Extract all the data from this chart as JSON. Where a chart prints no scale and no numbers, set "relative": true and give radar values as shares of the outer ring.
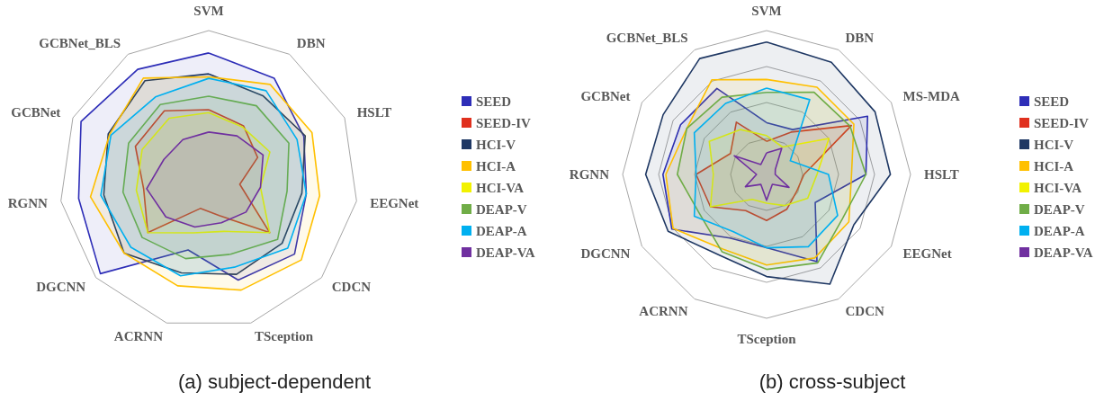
{
  "chart_data": [
    {
      "type": "radar",
      "title": "(a) subject-dependent",
      "relative": true,
      "grid": false,
      "legend": "right",
      "marker": "none",
      "categories": [
        "SVM",
        "DBN",
        "HSLT",
        "EEGNet",
        "CDCN",
        "TSception",
        "ACRNN",
        "DGCNN",
        "RGNN",
        "GCBNet",
        "GCBNet_BLS"
      ],
      "series": [
        {
          "name": "SEED",
          "color": "#2e2eb8",
          "values": [
            0.85,
            0.81,
            0.7,
            0.66,
            0.76,
            0.7,
            0.49,
            0.96,
            0.88,
            0.94,
            0.88
          ]
        },
        {
          "name": "SEED-IV",
          "color": "#e0301e",
          "values": [
            0.47,
            0.43,
            0.36,
            0.21,
            0.54,
            0.25,
            0.2,
            0.54,
            0.44,
            0.54,
            0.55
          ]
        },
        {
          "name": "HCI-V",
          "color": "#1f3864",
          "values": [
            0.71,
            0.67,
            0.71,
            0.63,
            0.65,
            0.66,
            0.65,
            0.75,
            0.71,
            0.74,
            0.79
          ]
        },
        {
          "name": "HCI-A",
          "color": "#ffc000",
          "values": [
            0.69,
            0.76,
            0.76,
            0.75,
            0.82,
            0.77,
            0.74,
            0.75,
            0.8,
            0.73,
            0.81
          ]
        },
        {
          "name": "HCI-VA",
          "color": "#f2f200",
          "values": [
            0.45,
            0.42,
            0.45,
            0.35,
            0.54,
            0.36,
            0.37,
            0.54,
            0.49,
            0.49,
            0.49
          ]
        },
        {
          "name": "DEAP-V",
          "color": "#70ad47",
          "values": [
            0.56,
            0.59,
            0.59,
            0.53,
            0.61,
            0.52,
            0.55,
            0.59,
            0.58,
            0.59,
            0.6
          ]
        },
        {
          "name": "DEAP-A",
          "color": "#00b0f0",
          "values": [
            0.68,
            0.71,
            0.65,
            0.66,
            0.7,
            0.61,
            0.67,
            0.69,
            0.73,
            0.72,
            0.66
          ]
        },
        {
          "name": "DEAP-VA",
          "color": "#7030a0",
          "values": [
            0.32,
            0.35,
            0.4,
            0.35,
            0.33,
            0.3,
            0.33,
            0.38,
            0.42,
            0.33,
            0.32
          ]
        }
      ]
    },
    {
      "type": "radar",
      "title": "(b) cross-subject",
      "relative": true,
      "grid": true,
      "legend": "right",
      "marker": "none",
      "categories": [
        "SVM",
        "DBN",
        "MS-MDA",
        "HSLT",
        "EEGNet",
        "CDCN",
        "TSception",
        "ACRNN",
        "DGCNN",
        "RGNN",
        "GCBNet",
        "GCBNet_BLS"
      ],
      "series": [
        {
          "name": "SEED",
          "color": "#2e2eb8",
          "values": [
            0.36,
            0.36,
            0.81,
            0.69,
            0.39,
            0.7,
            0.51,
            0.51,
            0.76,
            0.72,
            0.69,
            0.69
          ]
        },
        {
          "name": "SEED-IV",
          "color": "#e0301e",
          "values": [
            0.23,
            0.34,
            0.68,
            0.26,
            0.24,
            0.28,
            0.32,
            0.29,
            0.45,
            0.49,
            0.29,
            0.42
          ]
        },
        {
          "name": "HCI-V",
          "color": "#1f3864",
          "values": [
            0.92,
            0.9,
            0.87,
            0.86,
            0.7,
            0.88,
            0.71,
            0.65,
            0.79,
            0.84,
            0.83,
            0.93
          ]
        },
        {
          "name": "HCI-A",
          "color": "#ffc000",
          "values": [
            0.66,
            0.7,
            0.7,
            0.59,
            0.66,
            0.67,
            0.63,
            0.6,
            0.75,
            0.7,
            0.64,
            0.76
          ]
        },
        {
          "name": "HCI-VA",
          "color": "#f2f200",
          "values": [
            0.27,
            0.22,
            0.5,
            0.35,
            0.33,
            0.25,
            0.2,
            0.2,
            0.45,
            0.37,
            0.46,
            0.36
          ]
        },
        {
          "name": "DEAP-V",
          "color": "#70ad47",
          "values": [
            0.57,
            0.66,
            0.67,
            0.69,
            0.61,
            0.71,
            0.66,
            0.62,
            0.54,
            0.62,
            0.64,
            0.62
          ]
        },
        {
          "name": "DEAP-A",
          "color": "#00b0f0",
          "values": [
            0.6,
            0.6,
            0.19,
            0.43,
            0.57,
            0.58,
            0.51,
            0.46,
            0.58,
            0.49,
            0.58,
            0.57
          ]
        },
        {
          "name": "DEAP-VA",
          "color": "#7030a0",
          "values": [
            0.15,
            0.21,
            0.07,
            0.06,
            0.18,
            0.08,
            0.18,
            0.08,
            0.17,
            0.07,
            0.26,
            0.08
          ]
        }
      ]
    }
  ]
}
